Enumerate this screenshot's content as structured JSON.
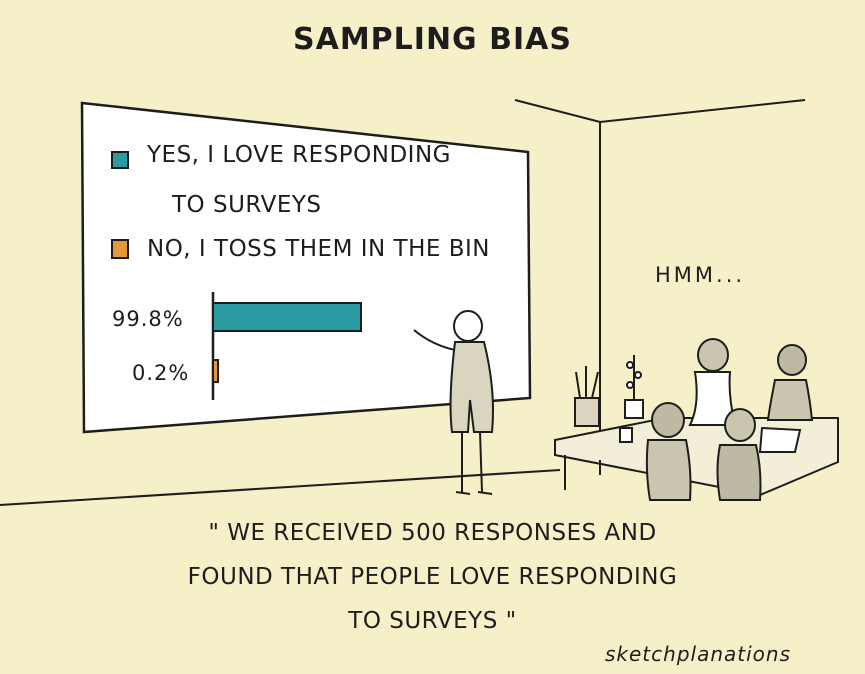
{
  "title": "SAMPLING BIAS",
  "legend": {
    "yes_line1": "YES, I LOVE RESPONDING",
    "yes_line2": "TO SURVEYS",
    "no": "NO, I TOSS THEM IN THE BIN"
  },
  "chart_data": {
    "type": "bar",
    "orientation": "horizontal",
    "categories": [
      "YES, I LOVE RESPONDING TO SURVEYS",
      "NO, I TOSS THEM IN THE BIN"
    ],
    "values": [
      99.8,
      0.2
    ],
    "value_labels": [
      "99.8%",
      "0.2%"
    ],
    "colors": [
      "#2b9aa1",
      "#e8963a"
    ]
  },
  "speech": "HMM...",
  "quote": {
    "line1": "\" WE RECEIVED 500 RESPONSES AND",
    "line2": "FOUND THAT PEOPLE LOVE RESPONDING",
    "line3": "TO SURVEYS \""
  },
  "signature": "sketchplanations"
}
